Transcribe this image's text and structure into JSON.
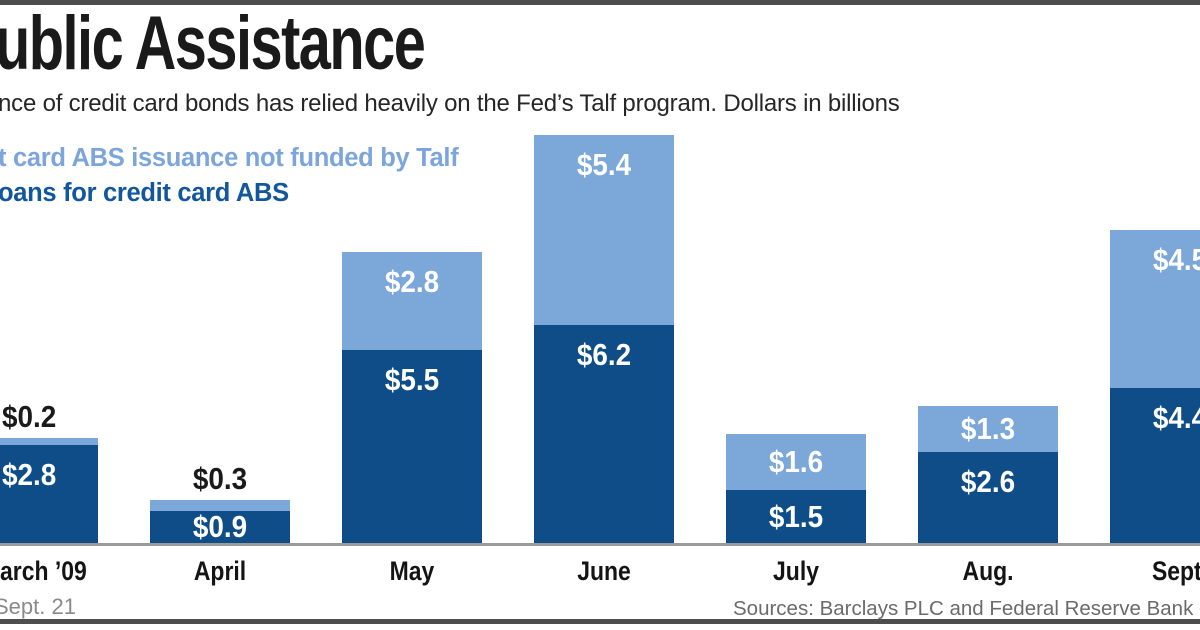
{
  "header": {
    "title": "ublic Assistance",
    "subtitle": "nce of credit card bonds has relied heavily on the Fed’s Talf program. Dollars in billions"
  },
  "legend": {
    "not_talf_label": "t card ABS issuance not funded by Talf",
    "talf_label": "oans for credit card ABS",
    "not_talf_color": "#7CA5DB",
    "talf_color": "#12569E"
  },
  "chart_data": {
    "type": "bar",
    "stacked": true,
    "unit": "dollars in billions",
    "value_prefix": "$",
    "categories": [
      "arch ’09",
      "April",
      "May",
      "June",
      "July",
      "Aug.",
      "Sept."
    ],
    "series": [
      {
        "name": "t card ABS issuance not funded by Talf",
        "position": "top",
        "color": "#7BA7D9",
        "values": [
          0.2,
          0.3,
          2.8,
          5.4,
          1.6,
          1.3,
          4.5
        ]
      },
      {
        "name": "oans for credit card ABS",
        "position": "bottom",
        "color": "#0E4D87",
        "values": [
          2.8,
          0.9,
          5.5,
          6.2,
          1.5,
          2.6,
          4.4
        ]
      }
    ],
    "legend_position": "top-left",
    "grid": false,
    "axis_line_color": "#9a9a9a"
  },
  "footer": {
    "note": "Sept. 21",
    "sources": "Sources: Barclays PLC and Federal Reserve Bank of N"
  }
}
